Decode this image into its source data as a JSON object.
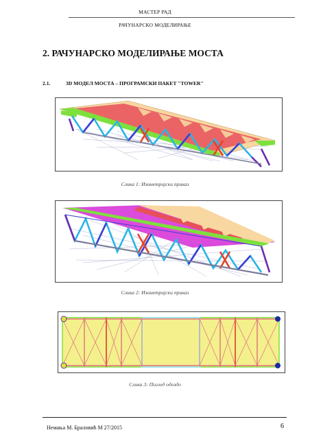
{
  "header": {
    "line1": "МАСТЕР РАД",
    "line2": "РАЧУНАРСКО МОДЕЛИРАЊЕ"
  },
  "heading": "2. РАЧУНАРСКО МОДЕЛИРАЊЕ МОСТА",
  "subheading": {
    "number": "2.1.",
    "text": "3D МОДЕЛ МОСТА – ПРОГРАМСКИ ПАКЕТ \"TOWER\""
  },
  "figures": [
    {
      "caption": "Слика 1: Изометријски приказ"
    },
    {
      "caption": "Слика 2: Изометријски приказ"
    },
    {
      "caption": "Слика 3: Поглед одоздо"
    }
  ],
  "footer": {
    "author": "Немања М. Браловић М 27/2015",
    "page": "6"
  },
  "colors": {
    "deck_top": "#f8d7a0",
    "deck_red": "#e8505a",
    "deck_magenta": "#d52cd6",
    "beam_green": "#7ee03c",
    "truss_cyan": "#2ab5e6",
    "truss_blue": "#3d3dd6",
    "truss_purple": "#6a2cb0",
    "bracing_red": "#e2442c",
    "plan_fill": "#f4f08c",
    "plan_border": "#e06f7f",
    "node": "#1a2aa0"
  }
}
